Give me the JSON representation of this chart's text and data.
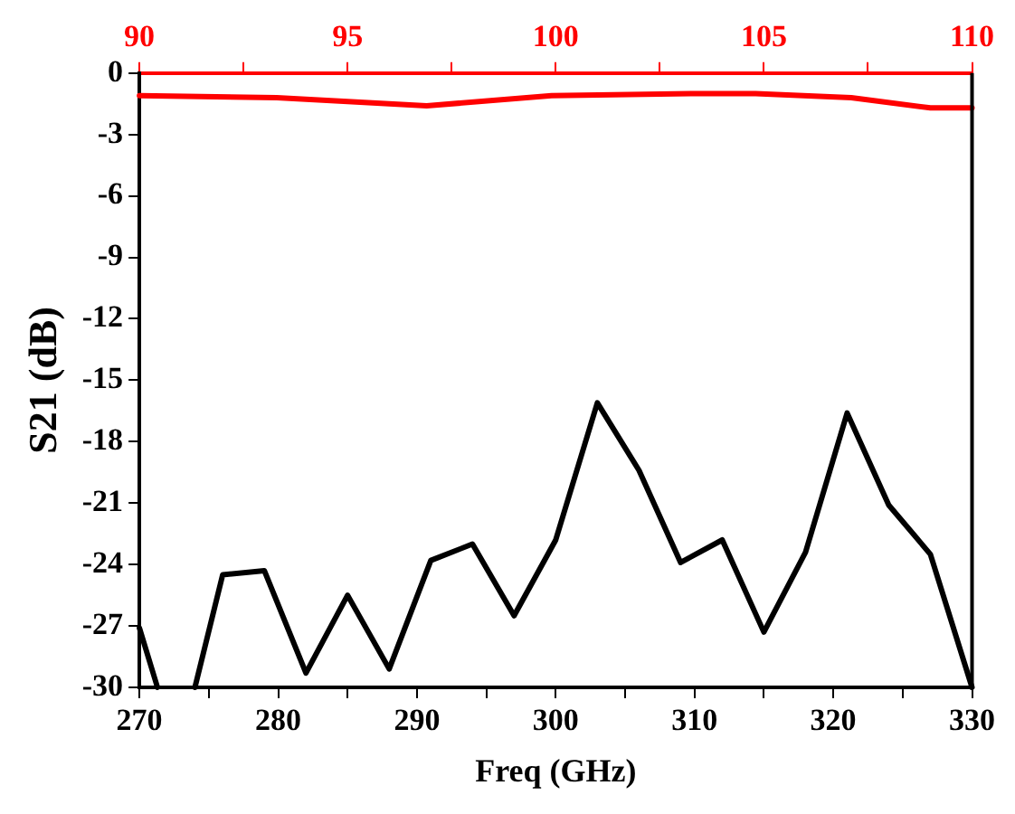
{
  "chart_data": {
    "type": "line",
    "xlabel": "Freq (GHz)",
    "ylabel": "S21 (dB)",
    "xlim": [
      270,
      330
    ],
    "xticks": [
      270,
      {
        "value": 275,
        "label": null
      },
      280,
      {
        "value": 285,
        "label": null
      },
      290,
      {
        "value": 295,
        "label": null
      },
      300,
      {
        "value": 305,
        "label": null
      },
      310,
      {
        "value": 315,
        "label": null
      },
      320,
      {
        "value": 325,
        "label": null
      },
      330
    ],
    "x2lim": [
      90,
      110
    ],
    "x2ticks": [
      90,
      {
        "value": 92.5,
        "label": null
      },
      95,
      {
        "value": 97.5,
        "label": null
      },
      100,
      {
        "value": 102.5,
        "label": null
      },
      105,
      {
        "value": 107.5,
        "label": null
      },
      110
    ],
    "ylim": [
      -30,
      0
    ],
    "yticks": [
      -30,
      -27,
      -24,
      -21,
      -18,
      -15,
      -12,
      -9,
      -6,
      -3,
      0
    ],
    "grid": false,
    "legend": false,
    "marker": "none",
    "line_style": "solid",
    "series": [
      {
        "color": "#000000",
        "x": [
          270,
          271.3,
          273,
          274,
          276,
          279,
          282,
          285,
          288,
          291,
          294,
          297,
          300,
          303,
          306,
          309,
          312,
          315,
          318,
          321,
          324,
          327,
          330
        ],
        "values": [
          -27.1,
          -30,
          null,
          -30,
          -24.5,
          -24.3,
          -29.3,
          -25.5,
          -29.1,
          -23.8,
          -23.0,
          -26.5,
          -22.8,
          -16.1,
          -19.4,
          -23.9,
          -22.8,
          -27.3,
          -23.4,
          -16.6,
          -21.1,
          -23.5,
          -30
        ]
      },
      {
        "color": "#ff0000",
        "axis": "x2",
        "x": [
          90,
          93.3,
          96.9,
          99.9,
          103.3,
          104.8,
          107.1,
          109,
          110
        ],
        "values": [
          -1.1,
          -1.2,
          -1.6,
          -1.1,
          -1.0,
          -1.0,
          -1.2,
          -1.7,
          -1.7
        ]
      }
    ]
  }
}
